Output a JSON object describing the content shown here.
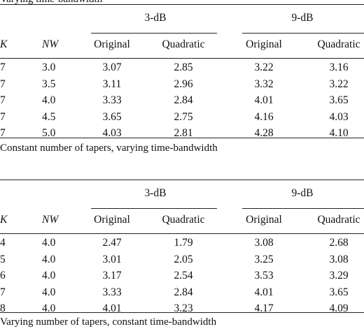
{
  "top_caption": "Varying time-bandwidth",
  "group_labels": [
    "3-dB",
    "9-dB"
  ],
  "column_headers": [
    "K",
    "NW",
    "Original",
    "Quadratic",
    "Original",
    "Quadratic"
  ],
  "table1": {
    "rows": [
      [
        "7",
        "3.0",
        "3.07",
        "2.85",
        "3.22",
        "3.16"
      ],
      [
        "7",
        "3.5",
        "3.11",
        "2.96",
        "3.32",
        "3.22"
      ],
      [
        "7",
        "4.0",
        "3.33",
        "2.84",
        "4.01",
        "3.65"
      ],
      [
        "7",
        "4.5",
        "3.65",
        "2.75",
        "4.16",
        "4.03"
      ],
      [
        "7",
        "5.0",
        "4.03",
        "2.81",
        "4.28",
        "4.10"
      ]
    ],
    "caption": "Constant number of tapers, varying time-bandwidth"
  },
  "table2": {
    "rows": [
      [
        "4",
        "4.0",
        "2.47",
        "1.79",
        "3.08",
        "2.68"
      ],
      [
        "5",
        "4.0",
        "3.01",
        "2.05",
        "3.25",
        "3.08"
      ],
      [
        "6",
        "4.0",
        "3.17",
        "2.54",
        "3.53",
        "3.29"
      ],
      [
        "7",
        "4.0",
        "3.33",
        "2.84",
        "4.01",
        "3.65"
      ],
      [
        "8",
        "4.0",
        "4.01",
        "3.23",
        "4.17",
        "4.09"
      ]
    ],
    "caption": "Varying number of tapers, constant time-bandwidth"
  }
}
